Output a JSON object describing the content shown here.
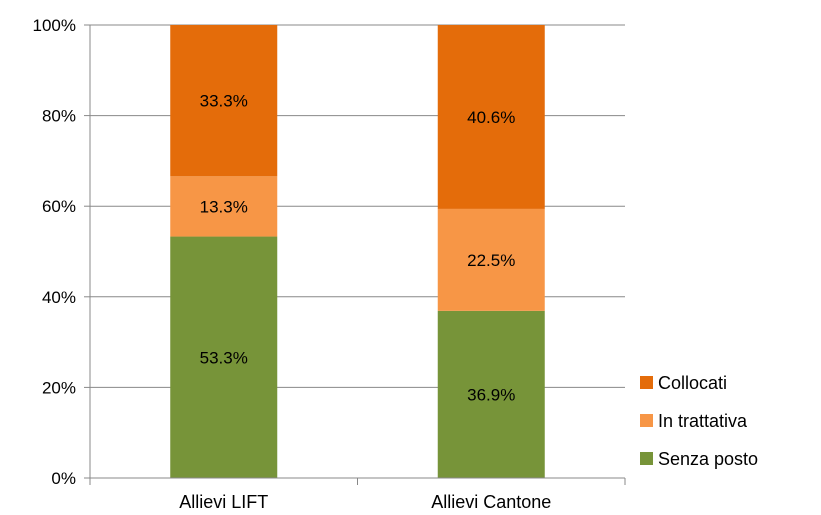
{
  "chart_data": {
    "type": "bar",
    "stacked": true,
    "percent_stacked": true,
    "categories": [
      "Allievi LIFT",
      "Allievi Cantone"
    ],
    "series": [
      {
        "name": "Senza posto",
        "color": "#779439",
        "values": [
          53.3,
          36.9
        ],
        "labels": [
          "53.3%",
          "36.9%"
        ]
      },
      {
        "name": "In trattativa",
        "color": "#F79646",
        "values": [
          13.3,
          22.5
        ],
        "labels": [
          "13.3%",
          "22.5%"
        ]
      },
      {
        "name": "Collocati",
        "color": "#E46C0A",
        "values": [
          33.3,
          40.6
        ],
        "labels": [
          "33.3%",
          "40.6%"
        ]
      }
    ],
    "ylim": [
      0,
      100
    ],
    "yticks": [
      0,
      20,
      40,
      60,
      80,
      100
    ],
    "ytick_labels": [
      "0%",
      "20%",
      "40%",
      "60%",
      "80%",
      "100%"
    ],
    "grid": true,
    "legend_position": "right",
    "legend_order": [
      "Collocati",
      "In trattativa",
      "Senza posto"
    ],
    "colors": {
      "grid": "#888888",
      "axis": "#888888"
    }
  }
}
